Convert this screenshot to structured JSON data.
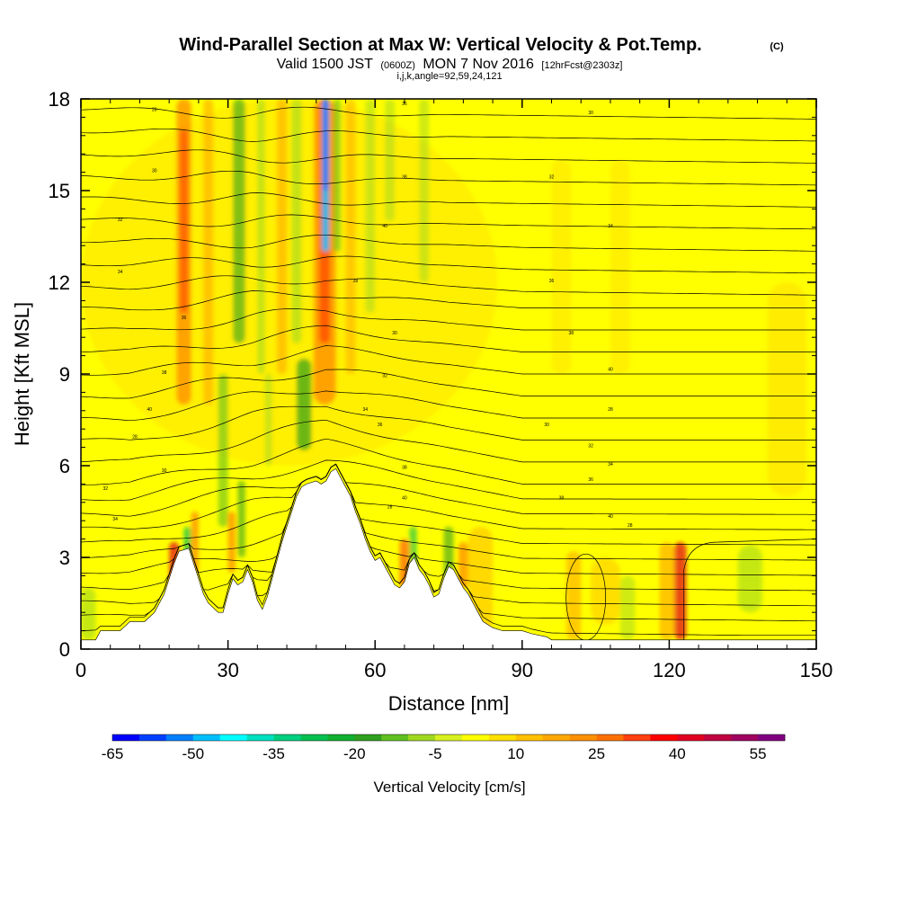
{
  "title": {
    "main": "Wind-Parallel Section at Max W: Vertical Velocity & Pot.Temp.",
    "copyright": "(C)",
    "valid_prefix": "Valid 1500 JST",
    "valid_utc": "(0600Z)",
    "valid_date": "MON 7 Nov 2016",
    "forecast": "[12hrFcst@2303z]",
    "indices": "i,j,k,angle=92,59,24,121"
  },
  "chart_data": {
    "type": "heatmap",
    "title": "Wind-Parallel Section at Max W: Vertical Velocity & Pot.Temp.",
    "xlabel": "Distance [nm]",
    "ylabel": "Height [Kft MSL]",
    "xlim": [
      0,
      150
    ],
    "ylim": [
      0,
      18
    ],
    "x_ticks": [
      0,
      30,
      60,
      90,
      120,
      150
    ],
    "y_ticks": [
      0,
      3,
      6,
      9,
      12,
      15,
      18
    ],
    "colorbar": {
      "title": "Vertical Velocity [cm/s]",
      "tick_labels": [
        "-65",
        "-50",
        "-35",
        "-20",
        "-5",
        "10",
        "25",
        "40",
        "55"
      ],
      "tick_values": [
        -65,
        -50,
        -35,
        -20,
        -5,
        10,
        25,
        40,
        55
      ],
      "levels": [
        -65,
        -60,
        -55,
        -50,
        -45,
        -40,
        -35,
        -30,
        -25,
        -20,
        -15,
        -10,
        -5,
        0,
        5,
        10,
        15,
        20,
        25,
        30,
        35,
        40,
        45,
        50,
        55,
        60
      ],
      "colors": [
        "#0000ff",
        "#0040ff",
        "#0080ff",
        "#00bfff",
        "#00ffff",
        "#00e0c0",
        "#00d080",
        "#00c050",
        "#10b030",
        "#30a020",
        "#60c020",
        "#a0d820",
        "#d8f020",
        "#ffff00",
        "#ffe000",
        "#ffc000",
        "#ffa800",
        "#ff9000",
        "#ff7000",
        "#ff4010",
        "#ff0000",
        "#e00020",
        "#c00040",
        "#a00060",
        "#800080"
      ]
    },
    "background_color": "#ffff00",
    "terrain_kft": [
      [
        0,
        0.3
      ],
      [
        3,
        0.3
      ],
      [
        4,
        0.6
      ],
      [
        8,
        0.6
      ],
      [
        10,
        0.9
      ],
      [
        13,
        0.9
      ],
      [
        15,
        1.2
      ],
      [
        17,
        1.8
      ],
      [
        18,
        2.3
      ],
      [
        19,
        2.8
      ],
      [
        20,
        3.2
      ],
      [
        22,
        3.3
      ],
      [
        23,
        2.8
      ],
      [
        24,
        2.3
      ],
      [
        25,
        1.8
      ],
      [
        26,
        1.5
      ],
      [
        28,
        1.2
      ],
      [
        29,
        1.2
      ],
      [
        30,
        1.8
      ],
      [
        31,
        2.3
      ],
      [
        32,
        2.1
      ],
      [
        33,
        2.2
      ],
      [
        34,
        2.6
      ],
      [
        35,
        2.2
      ],
      [
        36,
        1.6
      ],
      [
        37,
        1.3
      ],
      [
        38,
        1.7
      ],
      [
        39,
        2.3
      ],
      [
        40,
        2.9
      ],
      [
        41,
        3.5
      ],
      [
        42,
        4.0
      ],
      [
        43,
        4.5
      ],
      [
        44,
        5.0
      ],
      [
        45,
        5.3
      ],
      [
        46,
        5.4
      ],
      [
        48,
        5.5
      ],
      [
        49,
        5.4
      ],
      [
        50,
        5.5
      ],
      [
        51,
        5.8
      ],
      [
        52,
        5.9
      ],
      [
        53,
        5.6
      ],
      [
        54,
        5.3
      ],
      [
        55,
        5.0
      ],
      [
        56,
        4.5
      ],
      [
        57,
        4.1
      ],
      [
        58,
        3.6
      ],
      [
        59,
        3.2
      ],
      [
        60,
        2.9
      ],
      [
        61,
        3.0
      ],
      [
        62,
        2.7
      ],
      [
        63,
        2.4
      ],
      [
        64,
        2.1
      ],
      [
        65,
        2.0
      ],
      [
        66,
        2.2
      ],
      [
        67,
        2.8
      ],
      [
        68,
        3.0
      ],
      [
        69,
        2.6
      ],
      [
        70,
        2.4
      ],
      [
        71,
        2.1
      ],
      [
        72,
        1.7
      ],
      [
        73,
        1.8
      ],
      [
        74,
        2.3
      ],
      [
        75,
        2.7
      ],
      [
        76,
        2.6
      ],
      [
        77,
        2.3
      ],
      [
        78,
        2.0
      ],
      [
        79,
        1.8
      ],
      [
        80,
        1.5
      ],
      [
        81,
        1.2
      ],
      [
        82,
        0.9
      ],
      [
        84,
        0.7
      ],
      [
        86,
        0.6
      ],
      [
        90,
        0.6
      ],
      [
        92,
        0.5
      ],
      [
        95,
        0.4
      ],
      [
        96,
        0.3
      ],
      [
        150,
        0.3
      ]
    ],
    "theta_contour_labels": [
      "28",
      "30",
      "32",
      "34",
      "36",
      "38",
      "40"
    ]
  }
}
